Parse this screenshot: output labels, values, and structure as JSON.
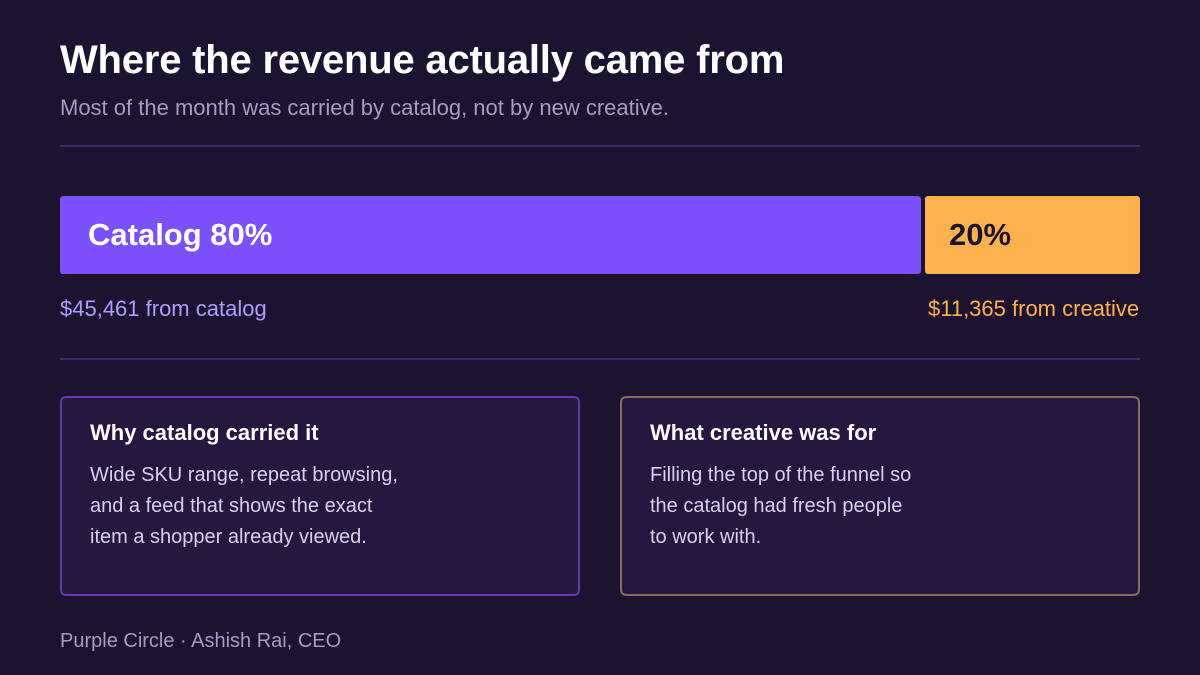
{
  "header": {
    "title": "Where the revenue actually came from",
    "subtitle": "Most of the month was carried by catalog, not by new creative."
  },
  "chart_data": {
    "type": "bar",
    "orientation": "horizontal-stacked",
    "categories": [
      "Catalog",
      "Creative"
    ],
    "values": [
      80,
      20
    ],
    "unit": "%",
    "segment_labels": [
      "Catalog 80%",
      "20%"
    ],
    "amounts": [
      45461,
      11365
    ],
    "amount_labels": [
      "$45,461 from catalog",
      "$11,365 from creative"
    ],
    "colors": [
      "#7b51f9",
      "#ffb04f"
    ]
  },
  "cards": [
    {
      "title": "Why catalog carried it",
      "lines": [
        "Wide SKU range, repeat browsing,",
        "and a feed that shows the exact",
        "item a shopper already viewed."
      ]
    },
    {
      "title": "What creative was for",
      "lines": [
        "Filling the top of the funnel so",
        "the catalog had fresh people",
        "to work with."
      ]
    }
  ],
  "footer": "Purple Circle · Ashish Rai, CEO",
  "colors": {
    "background": "#1b1330",
    "catalog": "#7b51f9",
    "creative": "#ffb04f",
    "muted_text": "#a89bc4"
  }
}
